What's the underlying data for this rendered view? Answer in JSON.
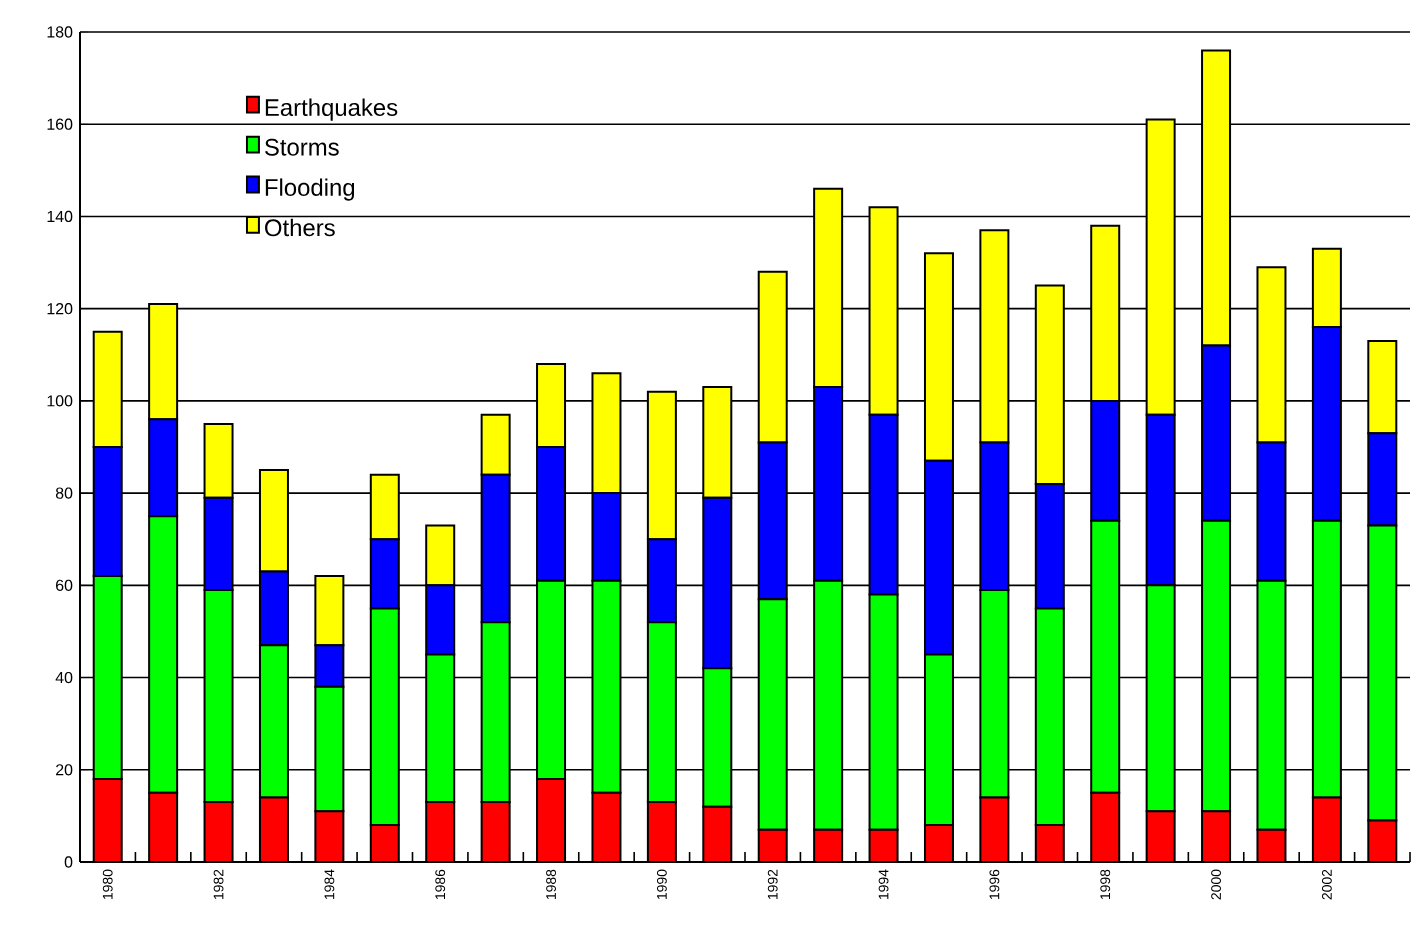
{
  "chart_data": {
    "type": "bar",
    "stacked": true,
    "categories": [
      "1980",
      null,
      "1982",
      null,
      "1984",
      null,
      "1986",
      null,
      "1988",
      null,
      "1990",
      null,
      "1992",
      null,
      "1994",
      null,
      "1996",
      null,
      "1998",
      null,
      "2000",
      null,
      "2002",
      null
    ],
    "series": [
      {
        "name": "Earthquakes",
        "color": "#ff0000",
        "values": [
          18,
          15,
          13,
          14,
          11,
          8,
          13,
          13,
          18,
          15,
          13,
          12,
          7,
          7,
          7,
          8,
          14,
          8,
          15,
          11,
          11,
          7,
          14,
          9
        ]
      },
      {
        "name": "Storms",
        "color": "#00ff00",
        "values": [
          44,
          60,
          46,
          33,
          27,
          47,
          32,
          39,
          43,
          46,
          39,
          30,
          50,
          54,
          51,
          37,
          45,
          47,
          59,
          49,
          63,
          54,
          60,
          64
        ]
      },
      {
        "name": "Flooding",
        "color": "#0000ff",
        "values": [
          28,
          21,
          20,
          16,
          9,
          15,
          15,
          32,
          29,
          19,
          18,
          37,
          34,
          42,
          39,
          42,
          32,
          27,
          26,
          37,
          38,
          30,
          42,
          20
        ]
      },
      {
        "name": "Others",
        "color": "#ffff00",
        "values": [
          25,
          25,
          16,
          22,
          15,
          14,
          13,
          13,
          18,
          26,
          32,
          24,
          37,
          43,
          45,
          45,
          46,
          43,
          38,
          64,
          64,
          38,
          17,
          20
        ]
      }
    ],
    "ylim": [
      0,
      180
    ],
    "yticks": [
      0,
      20,
      40,
      60,
      80,
      100,
      120,
      140,
      160,
      180
    ],
    "grid": "y",
    "legend": "top left"
  }
}
